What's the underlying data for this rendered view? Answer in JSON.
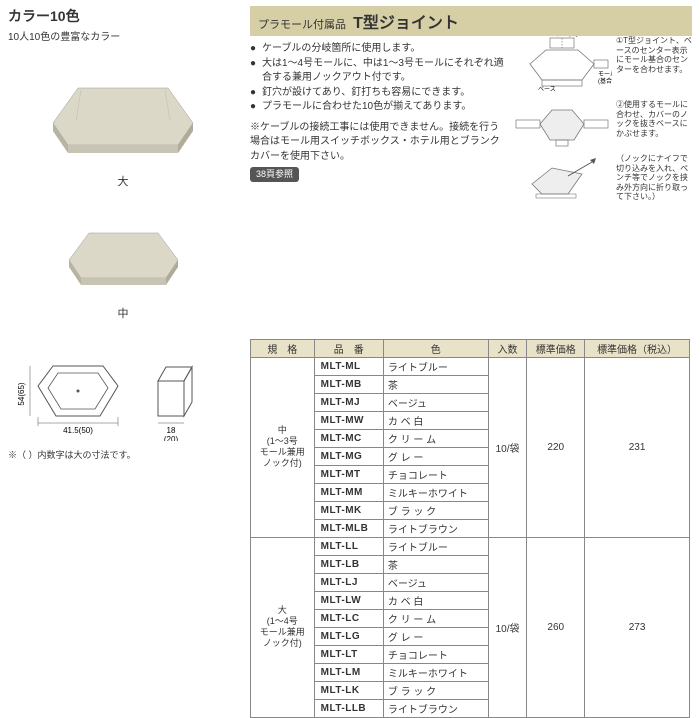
{
  "left": {
    "heading": "カラー10色",
    "sub": "10人10色の豊富なカラー",
    "caption_large": "大",
    "caption_med": "中",
    "dim_note": "※（ ）内数字は大の寸法です。",
    "dims": {
      "w": "41.5(50)",
      "d": "18",
      "d2": "(20)",
      "h": "54(65)"
    }
  },
  "title": {
    "pre": "プラモール付属品",
    "main": "T型ジョイント"
  },
  "desc": {
    "b1": "ケーブルの分岐箇所に使用します。",
    "b2": "大は1～4号モールに、中は1～3号モールにそれぞれ適合する兼用ノックアウト付です。",
    "b3": "釘穴が設けてあり、釘打ちも容易にできます。",
    "b4": "プラモールに合わせた10色が揃えてあります。",
    "note": "※ケーブルの接続工事には使用できません。接続を行う場合はモール用スイッチボックス・ホテル用とブランクカバーを使用下さい。",
    "ref": "38頁参照"
  },
  "diag": {
    "d1_labels": {
      "center": "センター表示",
      "mall": "モール",
      "base": "ベース",
      "basek": "(基合)"
    },
    "d1_text": "①T型ジョイント、ベースのセンター表示にモール基合のセンターを合わせます。",
    "d2_text": "②使用するモールに合わせ、カバーのノックを抜きベースにかぶせます。",
    "d3_text": "（ノックにナイフで切り込みを入れ、ペンチ等でノックを挟み外方向に折り取って下さい。）"
  },
  "table": {
    "headers": [
      "規　格",
      "品　番",
      "色",
      "入数",
      "標準価格",
      "標準価格（税込）"
    ],
    "group1": {
      "spec": "中\n(1～3号\nモール兼用\nノック付)",
      "qty": "10/袋",
      "price": "220",
      "price_tax": "231",
      "rows": [
        {
          "pn": "MLT-ML",
          "color": "ライトブルー"
        },
        {
          "pn": "MLT-MB",
          "color": "茶"
        },
        {
          "pn": "MLT-MJ",
          "color": "ベージュ"
        },
        {
          "pn": "MLT-MW",
          "color": "カ ベ 白"
        },
        {
          "pn": "MLT-MC",
          "color": "ク リ ー ム"
        },
        {
          "pn": "MLT-MG",
          "color": "グ レ ー"
        },
        {
          "pn": "MLT-MT",
          "color": "チョコレート"
        },
        {
          "pn": "MLT-MM",
          "color": "ミルキーホワイト"
        },
        {
          "pn": "MLT-MK",
          "color": "ブ ラ ッ ク"
        },
        {
          "pn": "MLT-MLB",
          "color": "ライトブラウン"
        }
      ]
    },
    "group2": {
      "spec": "大\n(1～4号\nモール兼用\nノック付)",
      "qty": "10/袋",
      "price": "260",
      "price_tax": "273",
      "rows": [
        {
          "pn": "MLT-LL",
          "color": "ライトブルー"
        },
        {
          "pn": "MLT-LB",
          "color": "茶"
        },
        {
          "pn": "MLT-LJ",
          "color": "ベージュ"
        },
        {
          "pn": "MLT-LW",
          "color": "カ ベ 白"
        },
        {
          "pn": "MLT-LC",
          "color": "ク リ ー ム"
        },
        {
          "pn": "MLT-LG",
          "color": "グ レ ー"
        },
        {
          "pn": "MLT-LT",
          "color": "チョコレート"
        },
        {
          "pn": "MLT-LM",
          "color": "ミルキーホワイト"
        },
        {
          "pn": "MLT-LK",
          "color": "ブ ラ ッ ク"
        },
        {
          "pn": "MLT-LLB",
          "color": "ライトブラウン"
        }
      ]
    }
  },
  "colors": {
    "product_fill": "#d8d4c4",
    "product_shadow": "#b8b4a2",
    "title_bg": "#d6cfa6",
    "table_header_bg": "#e8e3c8",
    "border": "#888888"
  }
}
